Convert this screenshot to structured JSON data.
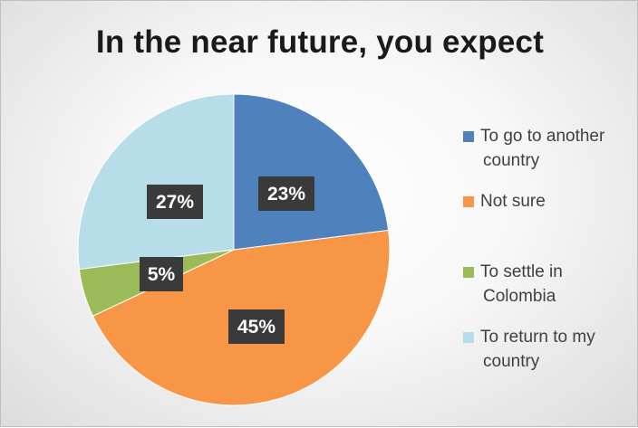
{
  "chart_data": {
    "type": "pie",
    "title": "In the near future, you expect",
    "categories": [
      "To go to another country",
      "Not sure",
      "To settle in Colombia",
      "To return to my country"
    ],
    "values": [
      23,
      45,
      5,
      27
    ],
    "labels": [
      "23%",
      "45%",
      "5%",
      "27%"
    ],
    "colors": [
      "#4f81bd",
      "#f79646",
      "#9bbb59",
      "#b7dde8"
    ],
    "legend_position": "right"
  },
  "legend": {
    "items": [
      {
        "line1": "To go to another",
        "line2": "country",
        "color": "#4f81bd"
      },
      {
        "line1": "Not sure",
        "line2": "",
        "color": "#f79646"
      },
      {
        "line1": "To settle in",
        "line2": "Colombia",
        "color": "#9bbb59"
      },
      {
        "line1": "To return to my",
        "line2": "country",
        "color": "#b7dde8"
      }
    ]
  }
}
